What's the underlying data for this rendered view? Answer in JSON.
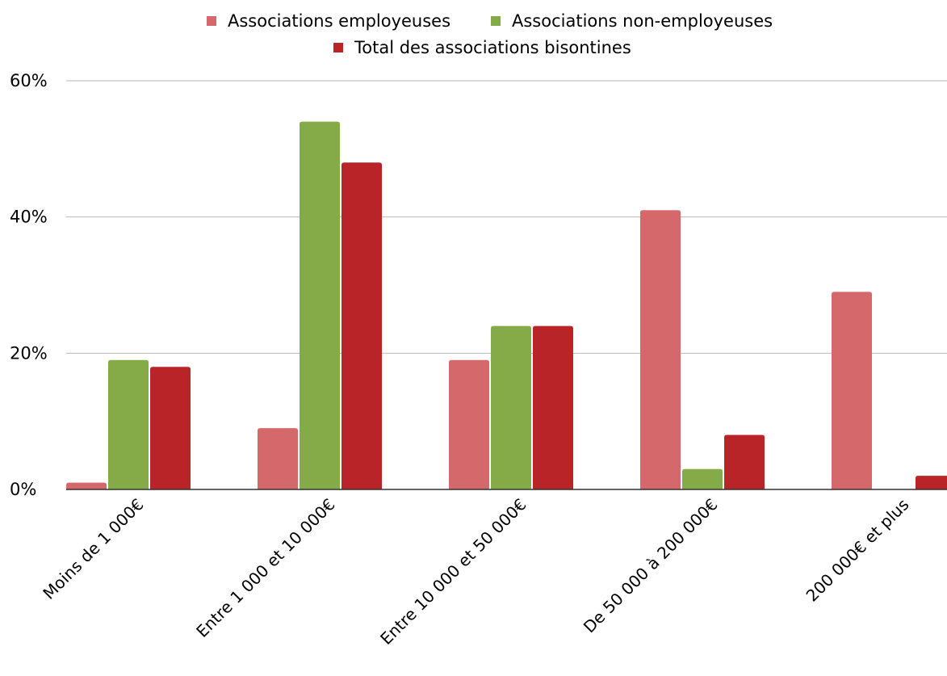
{
  "chart_data": {
    "type": "bar",
    "title": "",
    "xlabel": "",
    "ylabel": "",
    "ylim": [
      0,
      60
    ],
    "y_ticks": [
      "0%",
      "20%",
      "40%",
      "60%"
    ],
    "y_tick_values": [
      0,
      20,
      40,
      60
    ],
    "categories": [
      "Moins de 1 000€",
      "Entre 1 000 et 10 000€",
      "Entre 10 000 et 50 000€",
      "De 50 000 à 200 000€",
      "200 000€ et plus"
    ],
    "series": [
      {
        "name": "Associations employeuses",
        "color": "#d4686b",
        "values": [
          1,
          9,
          19,
          41,
          29
        ]
      },
      {
        "name": "Associations non-employeuses",
        "color": "#84ab47",
        "values": [
          19,
          54,
          24,
          3,
          0
        ]
      },
      {
        "name": "Total des associations bisontines",
        "color": "#b82427",
        "values": [
          18,
          48,
          24,
          8,
          2
        ]
      }
    ],
    "grid": true,
    "legend_position": "top"
  }
}
